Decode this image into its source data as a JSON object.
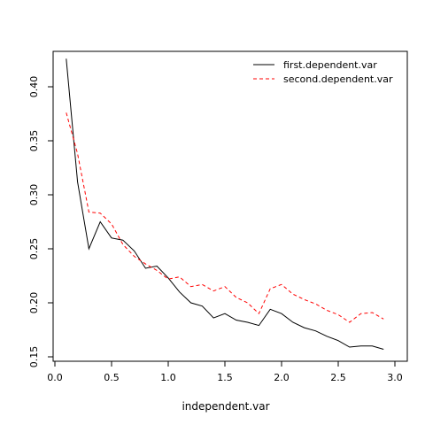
{
  "chart_data": {
    "type": "line",
    "title": "",
    "xlabel": "independent.var",
    "ylabel": "",
    "xlim": [
      0.0,
      3.0
    ],
    "ylim": [
      0.15,
      0.43
    ],
    "xticks": [
      0.0,
      0.5,
      1.0,
      1.5,
      2.0,
      2.5,
      3.0
    ],
    "xtick_labels": [
      "0.0",
      "0.5",
      "1.0",
      "1.5",
      "2.0",
      "2.5",
      "3.0"
    ],
    "yticks": [
      0.15,
      0.2,
      0.25,
      0.3,
      0.35,
      0.4
    ],
    "ytick_labels": [
      "0.15",
      "0.20",
      "0.25",
      "0.30",
      "0.35",
      "0.40"
    ],
    "grid": false,
    "legend_position": "top-right",
    "x": [
      0.1,
      0.2,
      0.3,
      0.4,
      0.5,
      0.6,
      0.7,
      0.8,
      0.9,
      1.0,
      1.1,
      1.2,
      1.3,
      1.4,
      1.5,
      1.6,
      1.7,
      1.8,
      1.9,
      2.0,
      2.1,
      2.2,
      2.3,
      2.4,
      2.5,
      2.6,
      2.7,
      2.8,
      2.9
    ],
    "series": [
      {
        "name": "first.dependent.var",
        "color": "#000000",
        "dash": "solid",
        "values": [
          0.426,
          0.312,
          0.25,
          0.275,
          0.26,
          0.258,
          0.248,
          0.232,
          0.234,
          0.223,
          0.21,
          0.2,
          0.197,
          0.186,
          0.19,
          0.184,
          0.182,
          0.179,
          0.194,
          0.19,
          0.182,
          0.177,
          0.174,
          0.169,
          0.165,
          0.159,
          0.16,
          0.16,
          0.157
        ]
      },
      {
        "name": "second.dependent.var",
        "color": "#ff0000",
        "dash": "dashed",
        "values": [
          0.376,
          0.338,
          0.284,
          0.283,
          0.273,
          0.254,
          0.243,
          0.236,
          0.23,
          0.222,
          0.224,
          0.215,
          0.217,
          0.211,
          0.215,
          0.205,
          0.2,
          0.19,
          0.213,
          0.217,
          0.208,
          0.203,
          0.199,
          0.193,
          0.189,
          0.182,
          0.19,
          0.191,
          0.185
        ]
      }
    ]
  }
}
